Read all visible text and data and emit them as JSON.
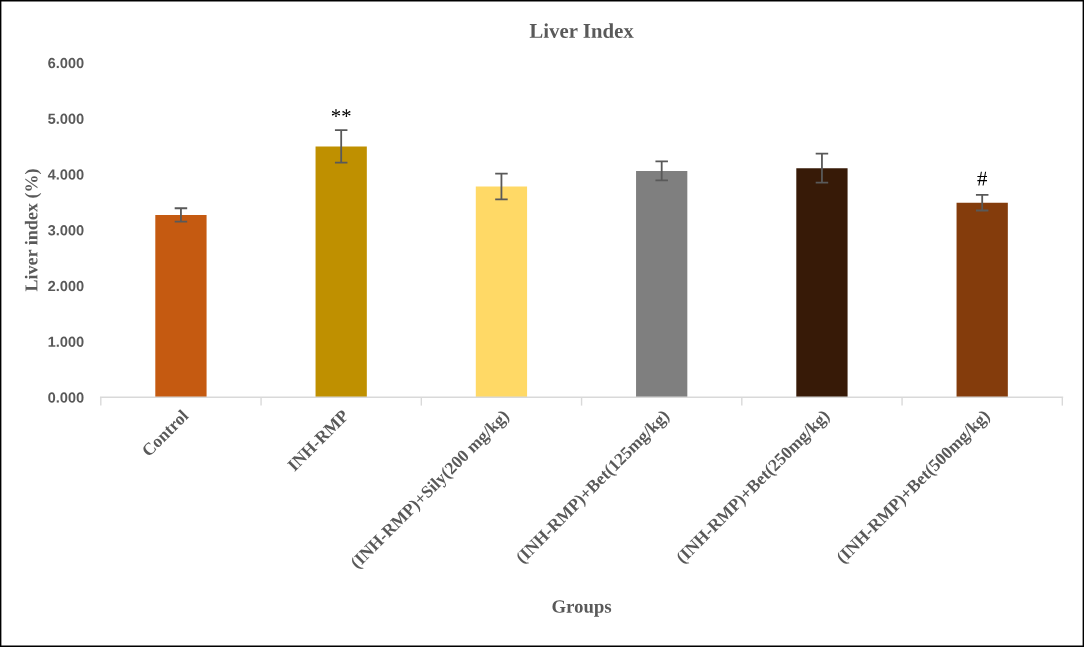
{
  "chart_data": {
    "type": "bar",
    "title": "Liver Index",
    "xlabel": "Groups",
    "ylabel": "Liver index (%)",
    "categories": [
      "Control",
      "INH-RMP",
      "(INH-RMP)+Sily(200 mg/kg)",
      "(INH-RMP)+Bet(125mg/kg)",
      "(INH-RMP)+Bet(250mg/kg)",
      "(INH-RMP)+Bet(500mg/kg)"
    ],
    "values": [
      3.27,
      4.5,
      3.78,
      4.06,
      4.11,
      3.49
    ],
    "errors": [
      0.12,
      0.29,
      0.23,
      0.17,
      0.26,
      0.14
    ],
    "colors": [
      "#c55a11",
      "#bf9000",
      "#ffd966",
      "#7f7f7f",
      "#371a07",
      "#843c0c"
    ],
    "ylim": [
      0,
      6
    ],
    "yticks": [
      {
        "value": 0,
        "label": "0.000"
      },
      {
        "value": 1,
        "label": "1.000"
      },
      {
        "value": 2,
        "label": "2.000"
      },
      {
        "value": 3,
        "label": "3.000"
      },
      {
        "value": 4,
        "label": "4.000"
      },
      {
        "value": 5,
        "label": "5.000"
      },
      {
        "value": 6,
        "label": "6.000"
      }
    ],
    "grid": false,
    "annotations": [
      {
        "text": "**",
        "x": "INH-RMP",
        "y": 4.84
      },
      {
        "text": "#",
        "x": "(INH-RMP)+Bet(500mg/kg)",
        "y": 3.72
      }
    ]
  }
}
